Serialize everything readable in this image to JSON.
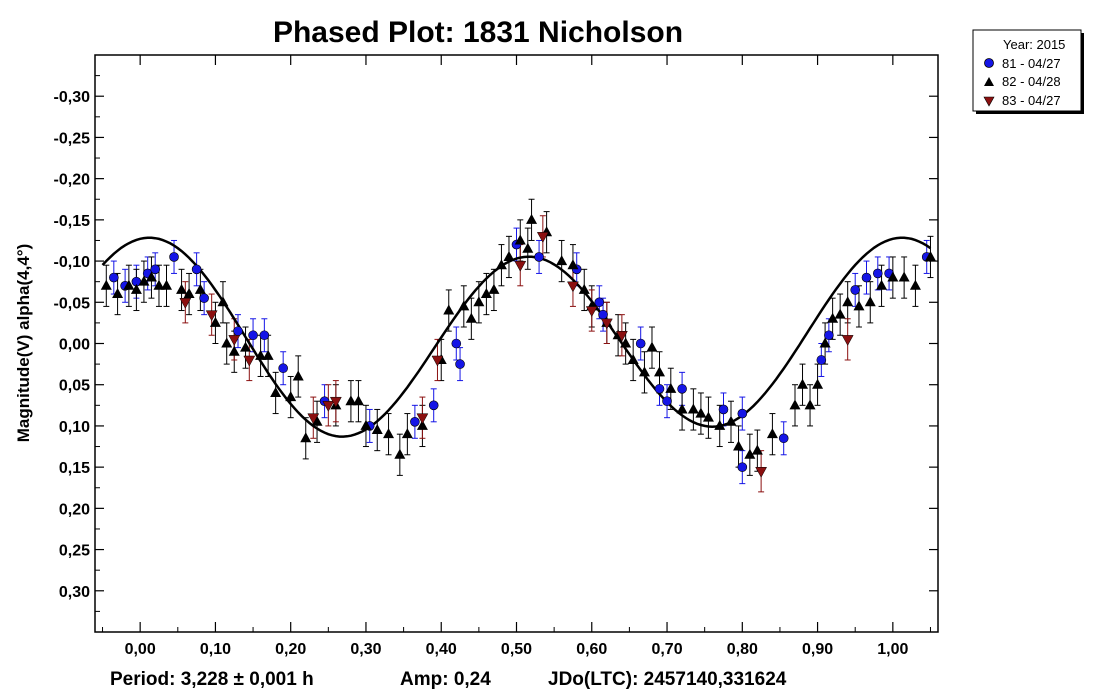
{
  "chart_data": {
    "type": "scatter",
    "title": "Phased Plot: 1831 Nicholson",
    "xlabel": "",
    "ylabel": "Magnitude(V) alpha(4,4°)",
    "xlim": [
      -0.06,
      1.06
    ],
    "ylim": [
      -0.35,
      0.35
    ],
    "y_inverted": true,
    "x_ticks": [
      0.0,
      0.1,
      0.2,
      0.3,
      0.4,
      0.5,
      0.6,
      0.7,
      0.8,
      0.9,
      1.0
    ],
    "x_tick_labels": [
      "0,00",
      "0,10",
      "0,20",
      "0,30",
      "0,40",
      "0,50",
      "0,60",
      "0,70",
      "0,80",
      "0,90",
      "1,00"
    ],
    "y_ticks": [
      -0.3,
      -0.25,
      -0.2,
      -0.15,
      -0.1,
      -0.05,
      0.0,
      0.05,
      0.1,
      0.15,
      0.2,
      0.25,
      0.3
    ],
    "y_tick_labels": [
      "-0,30",
      "-0,25",
      "-0,20",
      "-0,15",
      "-0,10",
      "-0,05",
      "0,00",
      "0,05",
      "0,10",
      "0,15",
      "0,20",
      "0,25",
      "0,30"
    ],
    "legend": {
      "title": "Year: 2015",
      "entries": [
        "81 - 04/27",
        "82 - 04/28",
        "83 - 04/27"
      ]
    },
    "footer": {
      "period": "Period: 3,228 ± 0,001 h",
      "amp": "Amp: 0,24",
      "jdo": "JDo(LTC): 2457140,331624"
    },
    "fit": {
      "phase_range": [
        -0.05,
        1.05
      ],
      "mean": -0.005,
      "h1_sin": 0.005,
      "h1_cos": -0.012,
      "h2_sin": -0.02,
      "h2_cos": -0.11
    },
    "series": [
      {
        "name": "81 - 04/27",
        "marker": "circle",
        "color": "#1515e6",
        "x": [
          -0.035,
          -0.02,
          -0.005,
          0.01,
          0.02,
          0.045,
          0.075,
          0.085,
          0.13,
          0.15,
          0.165,
          0.19,
          0.245,
          0.305,
          0.365,
          0.39,
          0.42,
          0.425,
          0.5,
          0.53,
          0.58,
          0.61,
          0.615,
          0.665,
          0.69,
          0.7,
          0.72,
          0.775,
          0.8,
          0.8,
          0.855,
          0.905,
          0.915,
          0.95,
          0.965,
          0.98,
          0.995,
          1.045
        ],
        "y": [
          -0.08,
          -0.07,
          -0.075,
          -0.085,
          -0.09,
          -0.105,
          -0.09,
          -0.055,
          -0.015,
          -0.01,
          -0.01,
          0.03,
          0.07,
          0.1,
          0.095,
          0.075,
          0.0,
          0.025,
          -0.12,
          -0.105,
          -0.09,
          -0.05,
          -0.035,
          0.0,
          0.055,
          0.07,
          0.055,
          0.08,
          0.085,
          0.15,
          0.115,
          0.02,
          -0.01,
          -0.065,
          -0.08,
          -0.085,
          -0.085,
          -0.105
        ],
        "err": [
          0.02,
          0.02,
          0.02,
          0.02,
          0.02,
          0.02,
          0.02,
          0.02,
          0.02,
          0.02,
          0.02,
          0.02,
          0.02,
          0.02,
          0.02,
          0.02,
          0.02,
          0.02,
          0.02,
          0.02,
          0.02,
          0.02,
          0.02,
          0.02,
          0.02,
          0.02,
          0.02,
          0.02,
          0.02,
          0.02,
          0.02,
          0.02,
          0.02,
          0.02,
          0.02,
          0.02,
          0.02,
          0.02
        ]
      },
      {
        "name": "82 - 04/28",
        "marker": "triangle-up",
        "color": "#000000",
        "x": [
          -0.045,
          -0.03,
          -0.015,
          -0.005,
          0.005,
          0.015,
          0.025,
          0.035,
          0.055,
          0.065,
          0.08,
          0.1,
          0.11,
          0.115,
          0.125,
          0.14,
          0.16,
          0.17,
          0.18,
          0.2,
          0.21,
          0.22,
          0.235,
          0.26,
          0.28,
          0.29,
          0.3,
          0.315,
          0.33,
          0.345,
          0.355,
          0.375,
          0.4,
          0.41,
          0.43,
          0.44,
          0.45,
          0.46,
          0.47,
          0.48,
          0.49,
          0.505,
          0.515,
          0.52,
          0.54,
          0.56,
          0.575,
          0.59,
          0.6,
          0.62,
          0.635,
          0.645,
          0.655,
          0.67,
          0.68,
          0.69,
          0.705,
          0.72,
          0.735,
          0.745,
          0.755,
          0.77,
          0.785,
          0.795,
          0.81,
          0.82,
          0.84,
          0.87,
          0.88,
          0.89,
          0.9,
          0.91,
          0.92,
          0.93,
          0.94,
          0.955,
          0.97,
          0.985,
          1.0,
          1.015,
          1.03,
          1.05
        ],
        "y": [
          -0.07,
          -0.06,
          -0.07,
          -0.065,
          -0.075,
          -0.08,
          -0.07,
          -0.07,
          -0.065,
          -0.06,
          -0.065,
          -0.025,
          -0.05,
          0.0,
          0.01,
          0.005,
          0.015,
          0.015,
          0.06,
          0.065,
          0.04,
          0.115,
          0.095,
          0.075,
          0.07,
          0.07,
          0.1,
          0.105,
          0.11,
          0.135,
          0.11,
          0.1,
          0.02,
          -0.04,
          -0.045,
          -0.03,
          -0.05,
          -0.06,
          -0.065,
          -0.095,
          -0.105,
          -0.125,
          -0.115,
          -0.15,
          -0.135,
          -0.1,
          -0.095,
          -0.065,
          -0.045,
          -0.025,
          -0.01,
          0.0,
          0.02,
          0.035,
          0.005,
          0.035,
          0.055,
          0.08,
          0.08,
          0.085,
          0.09,
          0.1,
          0.095,
          0.125,
          0.135,
          0.13,
          0.11,
          0.075,
          0.05,
          0.075,
          0.05,
          0.0,
          -0.03,
          -0.035,
          -0.05,
          -0.045,
          -0.05,
          -0.07,
          -0.08,
          -0.08,
          -0.07,
          -0.105
        ],
        "err": [
          0.025,
          0.025,
          0.025,
          0.025,
          0.025,
          0.025,
          0.025,
          0.025,
          0.025,
          0.025,
          0.025,
          0.025,
          0.025,
          0.025,
          0.025,
          0.025,
          0.025,
          0.025,
          0.025,
          0.025,
          0.025,
          0.025,
          0.025,
          0.025,
          0.025,
          0.025,
          0.025,
          0.025,
          0.025,
          0.025,
          0.025,
          0.025,
          0.025,
          0.025,
          0.025,
          0.025,
          0.025,
          0.025,
          0.025,
          0.025,
          0.025,
          0.025,
          0.025,
          0.025,
          0.025,
          0.025,
          0.025,
          0.025,
          0.025,
          0.025,
          0.025,
          0.025,
          0.025,
          0.025,
          0.025,
          0.025,
          0.025,
          0.025,
          0.025,
          0.025,
          0.025,
          0.025,
          0.025,
          0.025,
          0.025,
          0.025,
          0.025,
          0.025,
          0.025,
          0.025,
          0.025,
          0.025,
          0.025,
          0.025,
          0.025,
          0.025,
          0.025,
          0.025,
          0.025,
          0.025,
          0.025,
          0.025
        ]
      },
      {
        "name": "83 - 04/27",
        "marker": "triangle-down",
        "color": "#8b1010",
        "x": [
          0.06,
          0.095,
          0.125,
          0.145,
          0.23,
          0.25,
          0.26,
          0.375,
          0.395,
          0.505,
          0.535,
          0.575,
          0.6,
          0.62,
          0.64,
          0.825,
          0.94
        ],
        "y": [
          -0.05,
          -0.035,
          -0.005,
          0.02,
          0.09,
          0.075,
          0.07,
          0.09,
          0.02,
          -0.095,
          -0.13,
          -0.07,
          -0.04,
          -0.025,
          -0.01,
          0.155,
          -0.005
        ],
        "err": [
          0.025,
          0.025,
          0.025,
          0.025,
          0.025,
          0.025,
          0.025,
          0.025,
          0.025,
          0.025,
          0.025,
          0.025,
          0.025,
          0.025,
          0.025,
          0.025,
          0.025
        ]
      }
    ]
  }
}
